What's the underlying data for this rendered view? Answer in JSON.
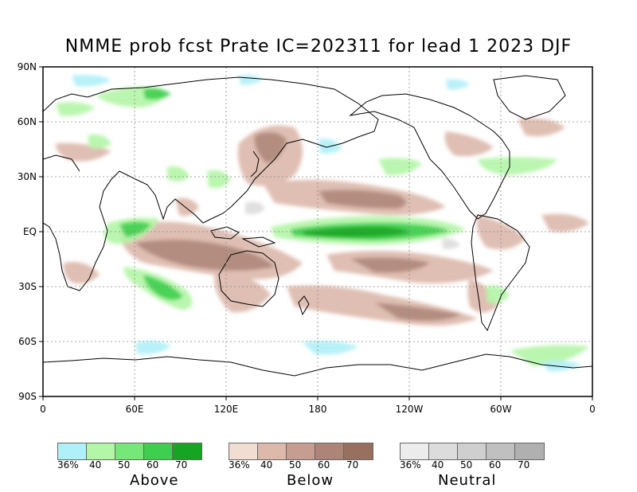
{
  "title": "NMME prob fcst Prate IC=202311 for lead 1 2023 DJF",
  "axes": {
    "lat_ticks": [
      "90N",
      "60N",
      "30N",
      "EQ",
      "30S",
      "60S",
      "90S"
    ],
    "lon_ticks": [
      "0",
      "60E",
      "120E",
      "180",
      "120W",
      "60W",
      "0"
    ]
  },
  "legends": [
    {
      "name": "Above",
      "ticks": [
        "36%",
        "40",
        "50",
        "60",
        "70"
      ],
      "colors": [
        "#b0f0f8",
        "#b4f6a8",
        "#76e877",
        "#3ecf4e",
        "#16a523"
      ]
    },
    {
      "name": "Below",
      "ticks": [
        "36%",
        "40",
        "50",
        "60",
        "70"
      ],
      "colors": [
        "#f1ddd2",
        "#dcb9ab",
        "#c69d91",
        "#ad8478",
        "#98705f"
      ]
    },
    {
      "name": "Neutral",
      "ticks": [
        "36%",
        "40",
        "50",
        "60",
        "70"
      ],
      "colors": [
        "#ececec",
        "#dcdcdc",
        "#cfcfcf",
        "#c0c0c0",
        "#b0b0b0"
      ]
    }
  ]
}
